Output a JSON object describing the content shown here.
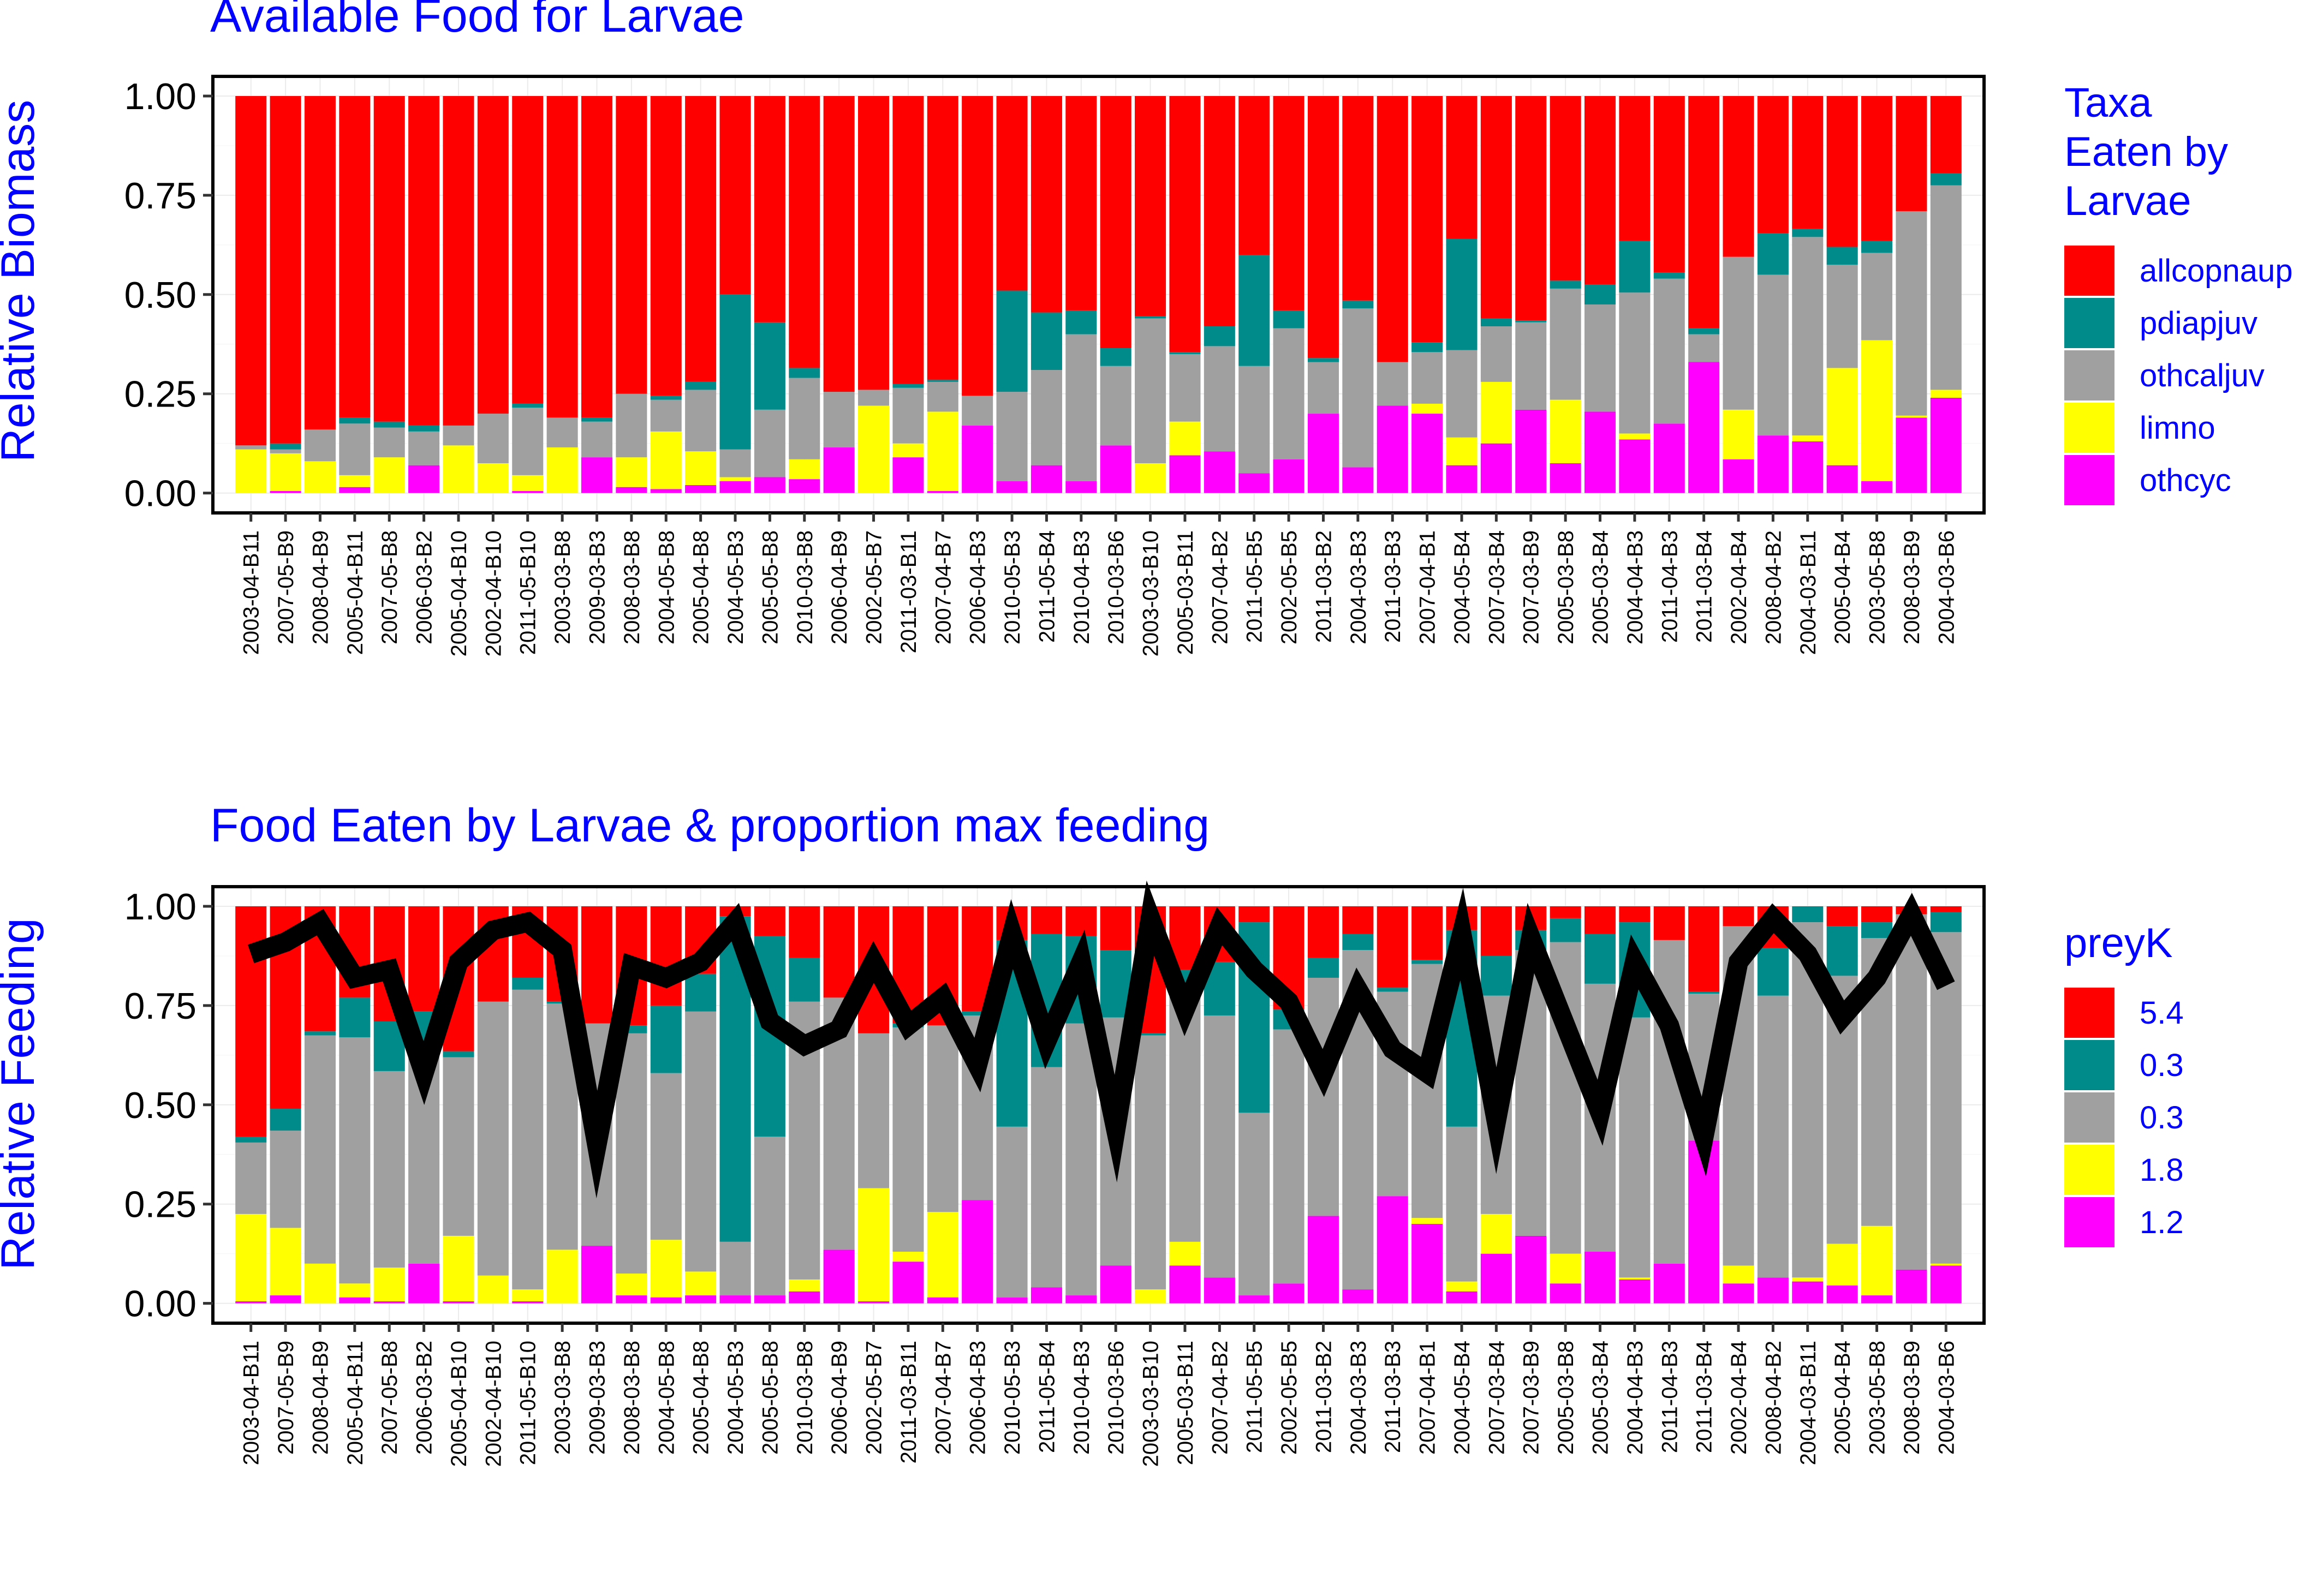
{
  "chart_data": [
    {
      "type": "bar",
      "stacked": true,
      "title": "Available Food for Larvae",
      "xlabel": "",
      "ylabel": "Relative Biomass",
      "ylim": [
        0,
        1
      ],
      "yticks": [
        "0.00",
        "0.25",
        "0.50",
        "0.75",
        "1.00"
      ],
      "legend": {
        "title": [
          "Taxa",
          "Eaten by",
          "Larvae"
        ],
        "position": "right",
        "entries": [
          {
            "label": "allcopnaup",
            "color": "#ff0000"
          },
          {
            "label": "pdiapjuv",
            "color": "#008b8b"
          },
          {
            "label": "othcaljuv",
            "color": "#a0a0a0"
          },
          {
            "label": "limno",
            "color": "#ffff00"
          },
          {
            "label": "othcyc",
            "color": "#ff00ff"
          }
        ]
      },
      "categories": [
        "2003-04-B11",
        "2007-05-B9",
        "2008-04-B9",
        "2005-04-B11",
        "2007-05-B8",
        "2006-03-B2",
        "2005-04-B10",
        "2002-04-B10",
        "2011-05-B10",
        "2003-03-B8",
        "2009-03-B3",
        "2008-03-B8",
        "2004-05-B8",
        "2005-04-B8",
        "2004-05-B3",
        "2005-05-B8",
        "2010-03-B8",
        "2006-04-B9",
        "2002-05-B7",
        "2011-03-B11",
        "2007-04-B7",
        "2006-04-B3",
        "2010-05-B3",
        "2011-05-B4",
        "2010-04-B3",
        "2010-03-B6",
        "2003-03-B10",
        "2005-03-B11",
        "2007-04-B2",
        "2011-05-B5",
        "2002-05-B5",
        "2011-03-B2",
        "2004-03-B3",
        "2011-03-B3",
        "2007-04-B1",
        "2004-05-B4",
        "2007-03-B4",
        "2007-03-B9",
        "2005-03-B8",
        "2005-03-B4",
        "2004-04-B3",
        "2011-04-B3",
        "2011-03-B4",
        "2002-04-B4",
        "2008-04-B2",
        "2004-03-B11",
        "2005-04-B4",
        "2003-05-B8",
        "2008-03-B9",
        "2004-03-B6"
      ],
      "series": [
        {
          "name": "othcyc",
          "values": [
            0,
            0.005,
            0,
            0.015,
            0,
            0.07,
            0,
            0,
            0.005,
            0,
            0.09,
            0.015,
            0.01,
            0.02,
            0.03,
            0.04,
            0.035,
            0.115,
            0,
            0.09,
            0.005,
            0.17,
            0.03,
            0.07,
            0.03,
            0.12,
            0,
            0.095,
            0.105,
            0.05,
            0.085,
            0.2,
            0.065,
            0.22,
            0.2,
            0.07,
            0.125,
            0.21,
            0.075,
            0.205,
            0.135,
            0.175,
            0.33,
            0.085,
            0.145,
            0.13,
            0.07,
            0.03,
            0.19,
            0.24
          ]
        },
        {
          "name": "limno",
          "values": [
            0.11,
            0.095,
            0.08,
            0.03,
            0.09,
            0,
            0.12,
            0.075,
            0.04,
            0.115,
            0,
            0.075,
            0.145,
            0.085,
            0.01,
            0,
            0.05,
            0,
            0.22,
            0.035,
            0.2,
            0,
            0,
            0,
            0,
            0,
            0.075,
            0.085,
            0,
            0,
            0,
            0,
            0,
            0,
            0.025,
            0.07,
            0.155,
            0,
            0.16,
            0,
            0.015,
            0,
            0,
            0.125,
            0,
            0.015,
            0.245,
            0.355,
            0.005,
            0.02
          ]
        },
        {
          "name": "othcaljuv",
          "values": [
            0.01,
            0.01,
            0.08,
            0.13,
            0.075,
            0.085,
            0.05,
            0.125,
            0.17,
            0.075,
            0.09,
            0.16,
            0.08,
            0.155,
            0.07,
            0.17,
            0.205,
            0.14,
            0.04,
            0.14,
            0.075,
            0.075,
            0.225,
            0.24,
            0.37,
            0.2,
            0.365,
            0.17,
            0.265,
            0.27,
            0.33,
            0.13,
            0.4,
            0.11,
            0.13,
            0.22,
            0.14,
            0.22,
            0.28,
            0.27,
            0.355,
            0.365,
            0.07,
            0.385,
            0.405,
            0.5,
            0.26,
            0.22,
            0.515,
            0.515
          ]
        },
        {
          "name": "pdiapjuv",
          "values": [
            0,
            0.015,
            0,
            0.015,
            0.015,
            0.015,
            0,
            0,
            0.01,
            0,
            0.01,
            0,
            0.01,
            0.02,
            0.39,
            0.22,
            0.025,
            0,
            0,
            0.01,
            0.005,
            0,
            0.255,
            0.145,
            0.06,
            0.045,
            0.005,
            0.005,
            0.05,
            0.28,
            0.045,
            0.01,
            0.02,
            0,
            0.025,
            0.28,
            0.02,
            0.005,
            0.02,
            0.05,
            0.13,
            0.015,
            0.015,
            0,
            0.105,
            0.02,
            0.045,
            0.03,
            0,
            0.03
          ]
        },
        {
          "name": "allcopnaup",
          "values": [
            0.88,
            0.875,
            0.84,
            0.81,
            0.82,
            0.83,
            0.83,
            0.8,
            0.775,
            0.81,
            0.81,
            0.75,
            0.755,
            0.72,
            0.5,
            0.57,
            0.685,
            0.745,
            0.74,
            0.725,
            0.715,
            0.755,
            0.49,
            0.545,
            0.54,
            0.635,
            0.555,
            0.645,
            0.58,
            0.4,
            0.54,
            0.66,
            0.515,
            0.67,
            0.62,
            0.36,
            0.56,
            0.565,
            0.465,
            0.475,
            0.365,
            0.445,
            0.585,
            0.405,
            0.345,
            0.335,
            0.38,
            0.365,
            0.29,
            0.195
          ]
        }
      ]
    },
    {
      "type": "bar",
      "stacked": true,
      "title": "Food Eaten by Larvae  & proportion max feeding",
      "xlabel": "",
      "ylabel": "Relative Feeding",
      "ylim": [
        0,
        1
      ],
      "yticks": [
        "0.00",
        "0.25",
        "0.50",
        "0.75",
        "1.00"
      ],
      "legend": {
        "title": [
          "preyK"
        ],
        "position": "right",
        "entries": [
          {
            "label": "5.4",
            "color": "#ff0000"
          },
          {
            "label": "0.3",
            "color": "#008b8b"
          },
          {
            "label": "0.3",
            "color": "#a0a0a0"
          },
          {
            "label": "1.8",
            "color": "#ffff00"
          },
          {
            "label": "1.2",
            "color": "#ff00ff"
          }
        ]
      },
      "categories": [
        "2003-04-B11",
        "2007-05-B9",
        "2008-04-B9",
        "2005-04-B11",
        "2007-05-B8",
        "2006-03-B2",
        "2005-04-B10",
        "2002-04-B10",
        "2011-05-B10",
        "2003-03-B8",
        "2009-03-B3",
        "2008-03-B8",
        "2004-05-B8",
        "2005-04-B8",
        "2004-05-B3",
        "2005-05-B8",
        "2010-03-B8",
        "2006-04-B9",
        "2002-05-B7",
        "2011-03-B11",
        "2007-04-B7",
        "2006-04-B3",
        "2010-05-B3",
        "2011-05-B4",
        "2010-04-B3",
        "2010-03-B6",
        "2003-03-B10",
        "2005-03-B11",
        "2007-04-B2",
        "2011-05-B5",
        "2002-05-B5",
        "2011-03-B2",
        "2004-03-B3",
        "2011-03-B3",
        "2007-04-B1",
        "2004-05-B4",
        "2007-03-B4",
        "2007-03-B9",
        "2005-03-B8",
        "2005-03-B4",
        "2004-04-B3",
        "2011-04-B3",
        "2011-03-B4",
        "2002-04-B4",
        "2008-04-B2",
        "2004-03-B11",
        "2005-04-B4",
        "2003-05-B8",
        "2008-03-B9",
        "2004-03-B6"
      ],
      "series": [
        {
          "name": "1.2",
          "values": [
            0.005,
            0.02,
            0,
            0.015,
            0.005,
            0.1,
            0.005,
            0,
            0.005,
            0,
            0.145,
            0.02,
            0.015,
            0.02,
            0.02,
            0.02,
            0.03,
            0.135,
            0.005,
            0.105,
            0.015,
            0.26,
            0.015,
            0.04,
            0.02,
            0.095,
            0,
            0.095,
            0.065,
            0.02,
            0.05,
            0.22,
            0.035,
            0.27,
            0.2,
            0.03,
            0.125,
            0.17,
            0.05,
            0.13,
            0.06,
            0.1,
            0.41,
            0.05,
            0.065,
            0.055,
            0.045,
            0.02,
            0.085,
            0.095
          ]
        },
        {
          "name": "1.8",
          "values": [
            0.22,
            0.17,
            0.1,
            0.035,
            0.085,
            0,
            0.165,
            0.07,
            0.03,
            0.135,
            0,
            0.055,
            0.145,
            0.06,
            0,
            0,
            0.03,
            0,
            0.285,
            0.025,
            0.215,
            0,
            0,
            0,
            0,
            0,
            0.035,
            0.06,
            0,
            0,
            0,
            0,
            0,
            0,
            0.015,
            0.025,
            0.1,
            0,
            0.075,
            0,
            0.005,
            0,
            0,
            0.045,
            0,
            0.01,
            0.105,
            0.175,
            0,
            0.005
          ]
        },
        {
          "name": "0.3",
          "values": [
            0.18,
            0.245,
            0.575,
            0.62,
            0.495,
            0.525,
            0.45,
            0.69,
            0.755,
            0.62,
            0.56,
            0.605,
            0.42,
            0.655,
            0.135,
            0.4,
            0.7,
            0.635,
            0.39,
            0.565,
            0.47,
            0.465,
            0.43,
            0.555,
            0.685,
            0.625,
            0.64,
            0.635,
            0.66,
            0.46,
            0.64,
            0.6,
            0.855,
            0.515,
            0.64,
            0.39,
            0.55,
            0.72,
            0.785,
            0.675,
            0.655,
            0.815,
            0.37,
            0.855,
            0.71,
            0.895,
            0.675,
            0.725,
            0.895,
            0.835
          ]
        },
        {
          "name": "0.3",
          "values": [
            0.015,
            0.055,
            0.01,
            0.1,
            0.125,
            0.11,
            0.015,
            0,
            0.03,
            0.005,
            0,
            0.02,
            0.17,
            0.095,
            0.82,
            0.505,
            0.11,
            0,
            0,
            0.01,
            0,
            0.01,
            0.47,
            0.335,
            0.22,
            0.17,
            0.005,
            0.05,
            0.135,
            0.48,
            0.05,
            0.05,
            0.04,
            0.01,
            0.01,
            0.495,
            0.1,
            0.05,
            0.06,
            0.125,
            0.24,
            0,
            0.005,
            0,
            0.12,
            0.04,
            0.125,
            0.04,
            0,
            0.05
          ]
        },
        {
          "name": "5.4",
          "values": [
            0.58,
            0.51,
            0.315,
            0.23,
            0.29,
            0.265,
            0.365,
            0.24,
            0.18,
            0.24,
            0.295,
            0.3,
            0.25,
            0.17,
            0.025,
            0.075,
            0.13,
            0.23,
            0.32,
            0.295,
            0.3,
            0.265,
            0.085,
            0.07,
            0.075,
            0.11,
            0.32,
            0.16,
            0.14,
            0.04,
            0.26,
            0.13,
            0.07,
            0.205,
            0.135,
            0.06,
            0.125,
            0.06,
            0.03,
            0.07,
            0.04,
            0.085,
            0.215,
            0.05,
            0.105,
            0,
            0.05,
            0.04,
            0.02,
            0.015
          ]
        },
        {
          "name": "proportion max feeding",
          "type": "line",
          "color": "#000000",
          "values": [
            0.88,
            0.91,
            0.96,
            0.82,
            0.84,
            0.58,
            0.86,
            0.94,
            0.96,
            0.89,
            0.4,
            0.85,
            0.82,
            0.86,
            0.96,
            0.71,
            0.65,
            0.69,
            0.86,
            0.7,
            0.77,
            0.6,
            0.93,
            0.66,
            0.86,
            0.44,
            0.97,
            0.74,
            0.95,
            0.84,
            0.76,
            0.58,
            0.79,
            0.64,
            0.58,
            0.93,
            0.46,
            0.92,
            0.7,
            0.48,
            0.86,
            0.7,
            0.42,
            0.86,
            0.97,
            0.88,
            0.72,
            0.82,
            0.98,
            0.8
          ]
        }
      ]
    }
  ]
}
